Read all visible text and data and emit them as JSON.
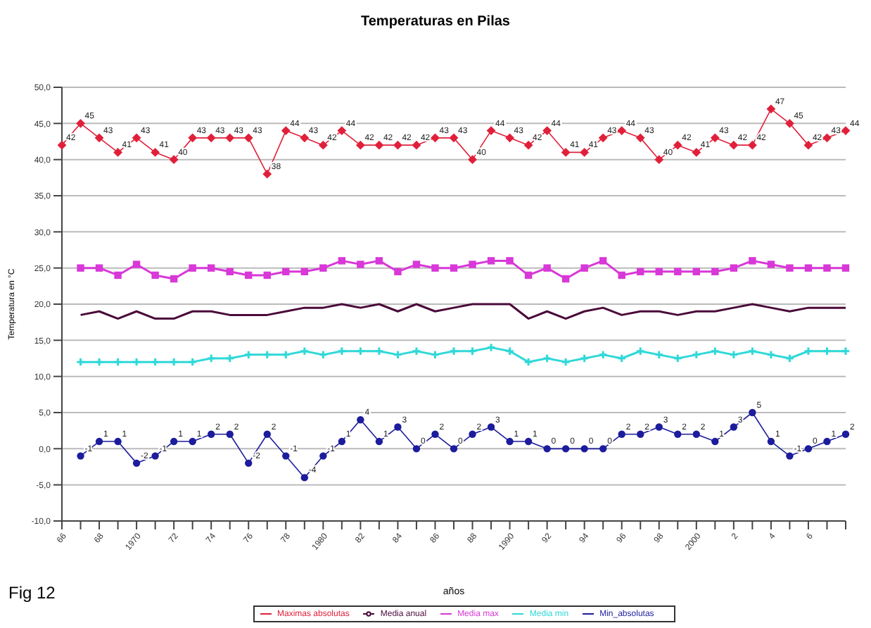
{
  "chart_data": {
    "type": "line",
    "title": "Temperaturas en Pilas",
    "xlabel": "años",
    "ylabel": "Temperatura en °C",
    "annotations": [
      "Fig 12"
    ],
    "categories": [
      "66",
      null,
      "68",
      null,
      "1970",
      null,
      "72",
      null,
      "74",
      null,
      "76",
      null,
      "78",
      null,
      "1980",
      null,
      "82",
      null,
      "84",
      null,
      "86",
      null,
      "88",
      null,
      "1990",
      null,
      "92",
      null,
      "94",
      null,
      "96",
      null,
      "98",
      null,
      "2000",
      null,
      "2",
      null,
      "4",
      null,
      "6",
      null,
      null
    ],
    "series": [
      {
        "name": "Maximas absolutas",
        "color": "#e0203a",
        "marker": "diamond",
        "data_labels": true,
        "values": [
          42,
          45,
          43,
          41,
          43,
          41,
          40,
          43,
          43,
          43,
          43,
          38,
          44,
          43,
          42,
          44,
          42,
          42,
          42,
          42,
          43,
          43,
          40,
          44,
          43,
          42,
          44,
          41,
          41,
          43,
          44,
          43,
          40,
          42,
          41,
          43,
          42,
          42,
          47,
          45,
          42,
          43,
          44
        ]
      },
      {
        "name": "Min_absolutas",
        "color": "#1c1c9c",
        "marker": "circle",
        "data_labels": true,
        "values": [
          null,
          -1,
          1,
          1,
          -2,
          -1,
          1,
          1,
          2,
          2,
          -2,
          2,
          -1,
          -4,
          -1,
          1,
          4,
          1,
          3,
          0,
          2,
          0,
          2,
          3,
          1,
          1,
          0,
          0,
          0,
          0,
          2,
          2,
          3,
          2,
          2,
          1,
          3,
          5,
          1,
          -1,
          0,
          1,
          2
        ]
      },
      {
        "name": "Media max",
        "color": "#d838d8",
        "marker": "square",
        "values": [
          null,
          25,
          25,
          24,
          25.5,
          24,
          23.5,
          25,
          25,
          24.5,
          24,
          24,
          24.5,
          24.5,
          25,
          26,
          25.5,
          26,
          24.5,
          25.5,
          25,
          25,
          25.5,
          26,
          26,
          24,
          25,
          23.5,
          25,
          26,
          24,
          24.5,
          24.5,
          24.5,
          24.5,
          24.5,
          25,
          26,
          25.5,
          25,
          25,
          25,
          25
        ]
      },
      {
        "name": "Media min",
        "color": "#30d8d8",
        "marker": "cross",
        "values": [
          null,
          12,
          12,
          12,
          12,
          12,
          12,
          12,
          12.5,
          12.5,
          13,
          13,
          13,
          13.5,
          13,
          13.5,
          13.5,
          13.5,
          13,
          13.5,
          13,
          13.5,
          13.5,
          14,
          13.5,
          12,
          12.5,
          12,
          12.5,
          13,
          12.5,
          13.5,
          13,
          12.5,
          13,
          13.5,
          13,
          13.5,
          13,
          12.5,
          13.5,
          13.5,
          13.5
        ]
      },
      {
        "name": "Media anual",
        "color": "#4a0a3a",
        "marker": "none",
        "values": [
          null,
          18.5,
          19,
          18,
          19,
          18,
          18,
          19,
          19,
          18.5,
          18.5,
          18.5,
          19,
          19.5,
          19.5,
          20,
          19.5,
          20,
          19,
          20,
          19,
          19.5,
          20,
          20,
          20,
          18,
          19,
          18,
          19,
          19.5,
          18.5,
          19,
          19,
          18.5,
          19,
          19,
          19.5,
          20,
          19.5,
          19,
          19.5,
          19.5,
          19.5
        ]
      }
    ],
    "ylim": [
      -10,
      50
    ],
    "yticks": [
      {
        "value": -10,
        "label": "-10,0"
      },
      {
        "value": -5,
        "label": "-5,0"
      },
      {
        "value": 0,
        "label": "0,0"
      },
      {
        "value": 5,
        "label": "5,0"
      },
      {
        "value": 10,
        "label": "10,0"
      },
      {
        "value": 15,
        "label": "15,0"
      },
      {
        "value": 20,
        "label": "20,0"
      },
      {
        "value": 25,
        "label": "25,0"
      },
      {
        "value": 30,
        "label": "30,0"
      },
      {
        "value": 35,
        "label": "35,0"
      },
      {
        "value": 40,
        "label": "40,0"
      },
      {
        "value": 45,
        "label": "45,0"
      },
      {
        "value": 50,
        "label": "50,0"
      }
    ],
    "grid": "y",
    "legend": "bottom",
    "line_style": "solid"
  }
}
